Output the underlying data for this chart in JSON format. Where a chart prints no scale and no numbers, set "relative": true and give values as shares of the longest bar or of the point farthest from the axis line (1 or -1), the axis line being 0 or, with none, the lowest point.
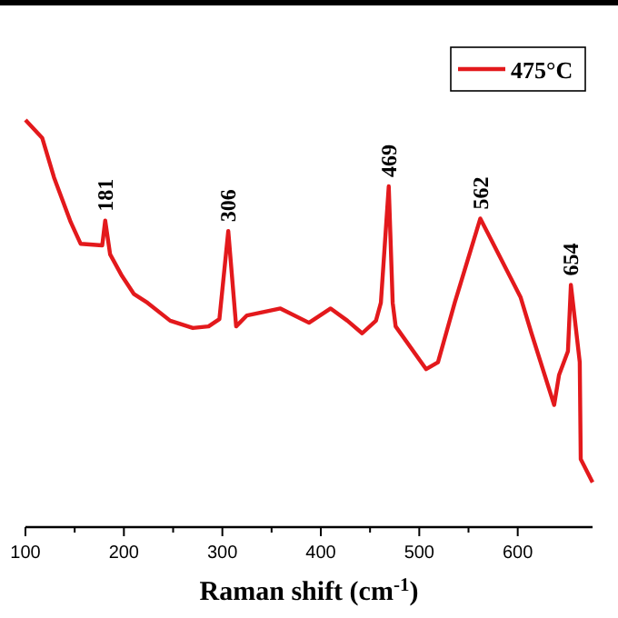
{
  "chart_data": {
    "type": "line",
    "xlabel": "Raman shift (cm$^{-1}$)",
    "relative": true,
    "xlim": [
      100,
      676
    ],
    "xticks": [
      100,
      200,
      300,
      400,
      500,
      600
    ],
    "legend": "top right",
    "marker": "none",
    "line_style": "solid",
    "grid": false,
    "x": [
      100,
      117,
      129,
      146,
      156,
      178,
      181,
      186,
      198,
      210,
      224,
      247,
      270,
      286,
      297,
      306,
      314,
      325,
      359,
      388,
      410,
      427,
      442,
      456,
      461,
      469,
      473,
      476,
      507,
      519,
      536,
      562,
      603,
      614,
      637,
      642,
      651,
      654,
      663,
      664,
      676
    ],
    "series": [
      {
        "name": "475°C",
        "color": "#e3191c",
        "values": [
          1.0,
          0.956,
          0.859,
          0.749,
          0.696,
          0.692,
          0.753,
          0.67,
          0.617,
          0.573,
          0.551,
          0.507,
          0.489,
          0.493,
          0.511,
          0.727,
          0.493,
          0.52,
          0.537,
          0.502,
          0.537,
          0.507,
          0.476,
          0.507,
          0.551,
          0.837,
          0.551,
          0.493,
          0.388,
          0.405,
          0.551,
          0.758,
          0.564,
          0.476,
          0.3,
          0.374,
          0.432,
          0.595,
          0.405,
          0.167,
          0.11
        ]
      }
    ],
    "annotations": [
      {
        "text": "181",
        "x": 181,
        "y": 0.753
      },
      {
        "text": "306",
        "x": 306,
        "y": 0.727
      },
      {
        "text": "469",
        "x": 469,
        "y": 0.837
      },
      {
        "text": "562",
        "x": 562,
        "y": 0.758
      },
      {
        "text": "654",
        "x": 654,
        "y": 0.595
      }
    ]
  }
}
